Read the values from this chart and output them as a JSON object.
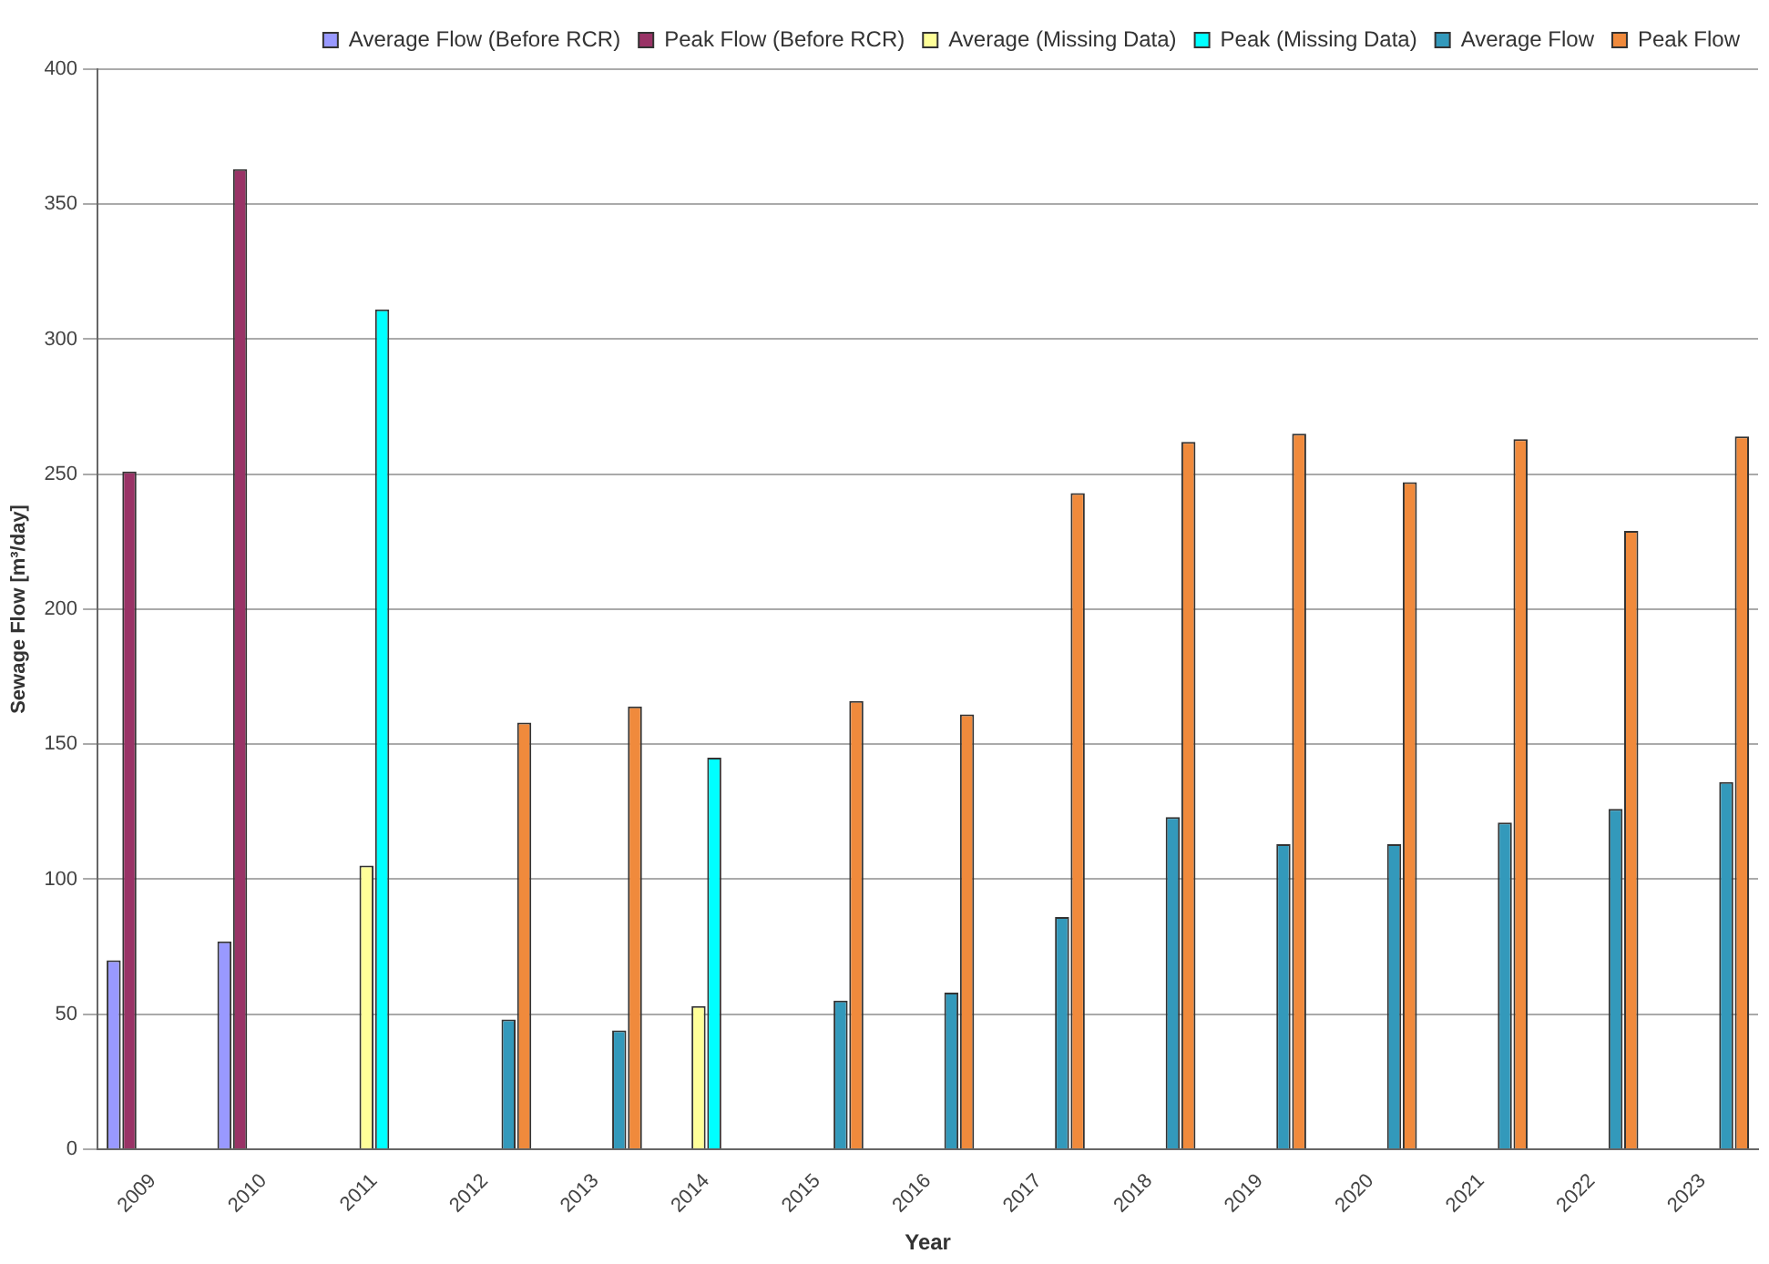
{
  "chart_data": {
    "type": "bar",
    "xlabel": "Year",
    "ylabel": "Sewage Flow [m³/day]",
    "categories": [
      "2009",
      "2010",
      "2011",
      "2012",
      "2013",
      "2014",
      "2015",
      "2016",
      "2017",
      "2018",
      "2019",
      "2020",
      "2021",
      "2022",
      "2023"
    ],
    "series": [
      {
        "name": "Average Flow (Before RCR)",
        "color": "#9999ff",
        "values": [
          70,
          77,
          null,
          null,
          null,
          null,
          null,
          null,
          null,
          null,
          null,
          null,
          null,
          null,
          null
        ]
      },
      {
        "name": "Peak Flow (Before RCR)",
        "color": "#993366",
        "values": [
          251,
          363,
          null,
          null,
          null,
          null,
          null,
          null,
          null,
          null,
          null,
          null,
          null,
          null,
          null
        ]
      },
      {
        "name": "Average (Missing Data)",
        "color": "#ffff99",
        "values": [
          null,
          null,
          105,
          null,
          null,
          53,
          null,
          null,
          null,
          null,
          null,
          null,
          null,
          null,
          null
        ]
      },
      {
        "name": "Peak (Missing Data)",
        "color": "#00ffff",
        "values": [
          null,
          null,
          311,
          null,
          null,
          145,
          null,
          null,
          null,
          null,
          null,
          null,
          null,
          null,
          null
        ]
      },
      {
        "name": "Average Flow",
        "color": "#3399bb",
        "values": [
          null,
          null,
          null,
          48,
          44,
          null,
          55,
          58,
          86,
          123,
          113,
          113,
          121,
          126,
          136
        ]
      },
      {
        "name": "Peak Flow",
        "color": "#f08a3c",
        "values": [
          null,
          null,
          null,
          158,
          164,
          null,
          166,
          161,
          243,
          262,
          265,
          247,
          263,
          229,
          264
        ]
      }
    ],
    "ylim": [
      0,
      400
    ],
    "yticks": [
      0,
      50,
      100,
      150,
      200,
      250,
      300,
      350,
      400
    ],
    "grid": "y",
    "legend": "top right"
  }
}
